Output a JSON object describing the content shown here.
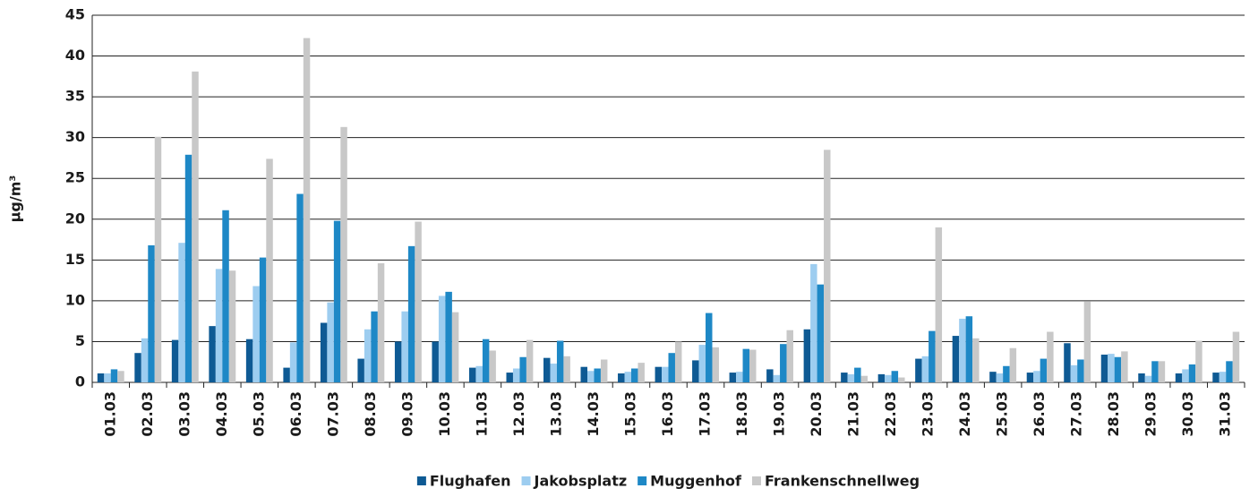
{
  "chart_data": {
    "type": "bar",
    "y_label": "µg/m³",
    "categories": [
      "01.03",
      "02.03",
      "03.03",
      "04.03",
      "05.03",
      "06.03",
      "07.03",
      "08.03",
      "09.03",
      "10.03",
      "11.03",
      "12.03",
      "13.03",
      "14.03",
      "15.03",
      "16.03",
      "17.03",
      "18.03",
      "19.03",
      "20.03",
      "21.03",
      "22.03",
      "23.03",
      "24.03",
      "25.03",
      "26.03",
      "27.03",
      "28.03",
      "29.03",
      "30.03",
      "31.03"
    ],
    "series": [
      {
        "name": "Flughafen",
        "color": "#0e5a94",
        "values": [
          1.1,
          3.6,
          5.2,
          6.9,
          5.3,
          1.8,
          7.3,
          2.9,
          5.0,
          5.0,
          1.8,
          1.2,
          3.0,
          1.9,
          1.1,
          1.9,
          2.7,
          1.2,
          1.6,
          6.5,
          1.2,
          1.0,
          2.9,
          5.7,
          1.3,
          1.2,
          4.8,
          3.4,
          1.1,
          1.1,
          1.2
        ]
      },
      {
        "name": "Jakobsplatz",
        "color": "#9dcdf0",
        "values": [
          1.1,
          5.4,
          17.1,
          13.9,
          11.8,
          4.9,
          9.8,
          6.5,
          8.7,
          10.6,
          2.0,
          1.7,
          2.3,
          1.4,
          1.3,
          1.9,
          4.6,
          1.3,
          0.9,
          14.5,
          1.0,
          0.9,
          3.2,
          7.8,
          1.1,
          1.4,
          2.1,
          3.5,
          0.8,
          1.6,
          1.3
        ]
      },
      {
        "name": "Muggenhof",
        "color": "#1e88c6",
        "values": [
          1.6,
          16.8,
          27.9,
          21.1,
          15.3,
          23.1,
          19.8,
          8.7,
          16.7,
          11.1,
          5.3,
          3.1,
          5.1,
          1.7,
          1.7,
          3.6,
          8.5,
          4.1,
          4.7,
          12.0,
          1.8,
          1.4,
          6.3,
          8.1,
          2.0,
          2.9,
          2.8,
          3.1,
          2.6,
          2.2,
          2.6
        ]
      },
      {
        "name": "Frankenschnellweg",
        "color": "#c8c8c8",
        "values": [
          1.4,
          30.1,
          38.1,
          13.7,
          27.4,
          42.2,
          31.3,
          14.6,
          19.7,
          8.6,
          3.9,
          5.2,
          3.2,
          2.8,
          2.4,
          5.0,
          4.3,
          4.0,
          6.4,
          28.5,
          0.8,
          0.6,
          19.0,
          5.4,
          4.2,
          6.2,
          9.9,
          3.8,
          2.6,
          5.1,
          6.2
        ]
      }
    ],
    "ylim": [
      0,
      45
    ],
    "yticks": [
      0,
      5,
      10,
      15,
      20,
      25,
      30,
      35,
      40,
      45
    ],
    "grid": true,
    "legend": "bottom"
  }
}
